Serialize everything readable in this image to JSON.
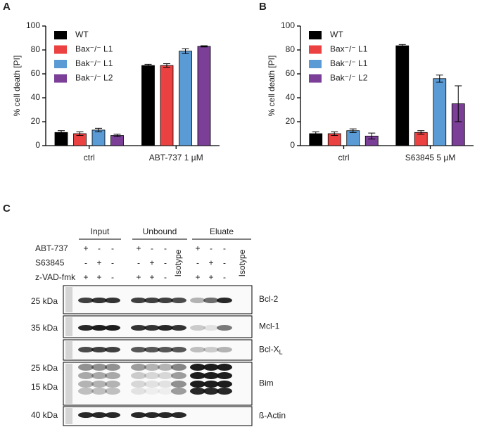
{
  "chart_data": [
    {
      "type": "bar",
      "panel": "A",
      "ylabel": "% cell death [PI]",
      "categories": [
        "ctrl",
        "ABT-737 1 µM"
      ],
      "series": [
        {
          "name": "WT",
          "color": "#000000",
          "values": [
            11,
            67
          ],
          "errors": [
            1.5,
            1
          ]
        },
        {
          "name": "Bax⁻/⁻ L1",
          "color": "#ec4141",
          "values": [
            10,
            67
          ],
          "errors": [
            1.5,
            1.5
          ]
        },
        {
          "name": "Bak⁻/⁻ L1",
          "color": "#5b9bd5",
          "values": [
            13,
            79
          ],
          "errors": [
            1.5,
            2
          ]
        },
        {
          "name": "Bak⁻/⁻ L2",
          "color": "#7b3f98",
          "values": [
            8.5,
            83
          ],
          "errors": [
            1,
            0.5
          ]
        }
      ],
      "ylim": [
        0,
        100
      ],
      "yticks": [
        0,
        20,
        40,
        60,
        80,
        100
      ],
      "legend": "upper left"
    },
    {
      "type": "bar",
      "panel": "B",
      "ylabel": "% cell death [PI]",
      "categories": [
        "ctrl",
        "S63845 5 µM"
      ],
      "series": [
        {
          "name": "WT",
          "color": "#000000",
          "values": [
            10,
            83.5
          ],
          "errors": [
            1.5,
            1
          ]
        },
        {
          "name": "Bax⁻/⁻ L1",
          "color": "#ec4141",
          "values": [
            10,
            11
          ],
          "errors": [
            1.5,
            1.5
          ]
        },
        {
          "name": "Bak⁻/⁻ L1",
          "color": "#5b9bd5",
          "values": [
            12.5,
            56
          ],
          "errors": [
            1.5,
            3
          ]
        },
        {
          "name": "Bak⁻/⁻ L2",
          "color": "#7b3f98",
          "values": [
            8,
            35
          ],
          "errors": [
            2.5,
            15
          ]
        }
      ],
      "ylim": [
        0,
        100
      ],
      "yticks": [
        0,
        20,
        40,
        60,
        80,
        100
      ],
      "legend": "upper left"
    }
  ],
  "blot": {
    "panel": "C",
    "groups": [
      "Input",
      "Unbound",
      "Eluate"
    ],
    "treatments": [
      {
        "name": "ABT-737",
        "lanes": [
          "+",
          "-",
          "-",
          "+",
          "-",
          "-",
          "+",
          "-",
          "-"
        ]
      },
      {
        "name": "S63845",
        "lanes": [
          "-",
          "+",
          "-",
          "-",
          "+",
          "-",
          "-",
          "+",
          "-"
        ]
      },
      {
        "name": "z-VAD-fmk",
        "lanes": [
          "+",
          "+",
          "-",
          "+",
          "+",
          "-",
          "+",
          "+",
          "-"
        ]
      }
    ],
    "isotype": [
      "Isotype",
      "Isotype"
    ],
    "panels": [
      {
        "markers": [
          "25 kDa"
        ],
        "protein": "Bcl-2"
      },
      {
        "markers": [
          "35 kDa"
        ],
        "protein": "Mcl-1"
      },
      {
        "markers": [],
        "protein": "Bcl-X",
        "protein_sub": "L"
      },
      {
        "markers": [
          "25 kDa",
          "15 kDa"
        ],
        "protein": "Bim"
      },
      {
        "markers": [
          "40 kDa"
        ],
        "protein": "ß-Actin"
      }
    ]
  }
}
